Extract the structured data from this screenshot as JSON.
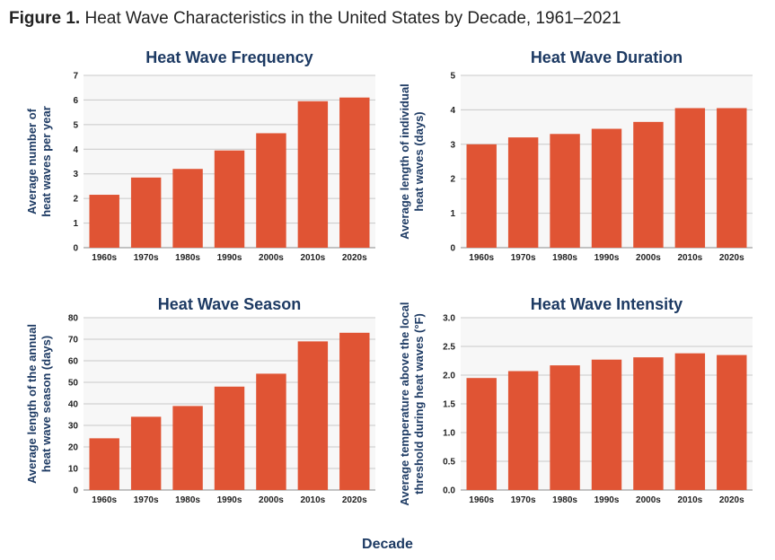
{
  "figure": {
    "label": "Figure 1.",
    "title": "Heat Wave Characteristics in the United States by Decade, 1961–2021",
    "xlabel": "Decade"
  },
  "colors": {
    "bar": "#e05434",
    "title": "#1d3a63"
  },
  "chart_data": [
    {
      "type": "bar",
      "title": "Heat Wave Frequency",
      "ylabel": [
        "Average number of",
        "heat waves per year"
      ],
      "categories": [
        "1960s",
        "1970s",
        "1980s",
        "1990s",
        "2000s",
        "2010s",
        "2020s"
      ],
      "values": [
        2.15,
        2.85,
        3.2,
        3.95,
        4.65,
        5.95,
        6.1
      ],
      "ylim": [
        0,
        7
      ],
      "yticks": [
        "0",
        "1",
        "2",
        "3",
        "4",
        "5",
        "6",
        "7"
      ],
      "grid": true
    },
    {
      "type": "bar",
      "title": "Heat Wave Duration",
      "ylabel": [
        "Average length of individual",
        "heat waves (days)"
      ],
      "categories": [
        "1960s",
        "1970s",
        "1980s",
        "1990s",
        "2000s",
        "2010s",
        "2020s"
      ],
      "values": [
        3.0,
        3.2,
        3.3,
        3.45,
        3.65,
        4.05,
        4.05
      ],
      "ylim": [
        0,
        5
      ],
      "yticks": [
        "0",
        "1",
        "2",
        "3",
        "4",
        "5"
      ],
      "grid": true
    },
    {
      "type": "bar",
      "title": "Heat Wave Season",
      "ylabel": [
        "Average length of the annual",
        "heat wave season (days)"
      ],
      "categories": [
        "1960s",
        "1970s",
        "1980s",
        "1990s",
        "2000s",
        "2010s",
        "2020s"
      ],
      "values": [
        24,
        34,
        39,
        48,
        54,
        69,
        73
      ],
      "ylim": [
        0,
        80
      ],
      "yticks": [
        "0",
        "10",
        "20",
        "30",
        "40",
        "50",
        "60",
        "70",
        "80"
      ],
      "grid": true
    },
    {
      "type": "bar",
      "title": "Heat Wave Intensity",
      "ylabel": [
        "Average temperature above the local",
        "threshold during heat waves (°F)"
      ],
      "categories": [
        "1960s",
        "1970s",
        "1980s",
        "1990s",
        "2000s",
        "2010s",
        "2020s"
      ],
      "values": [
        1.95,
        2.07,
        2.17,
        2.27,
        2.31,
        2.38,
        2.35
      ],
      "ylim": [
        0,
        3
      ],
      "yticks": [
        "0.0",
        "0.5",
        "1.0",
        "1.5",
        "2.0",
        "2.5",
        "3.0"
      ],
      "grid": true
    }
  ]
}
